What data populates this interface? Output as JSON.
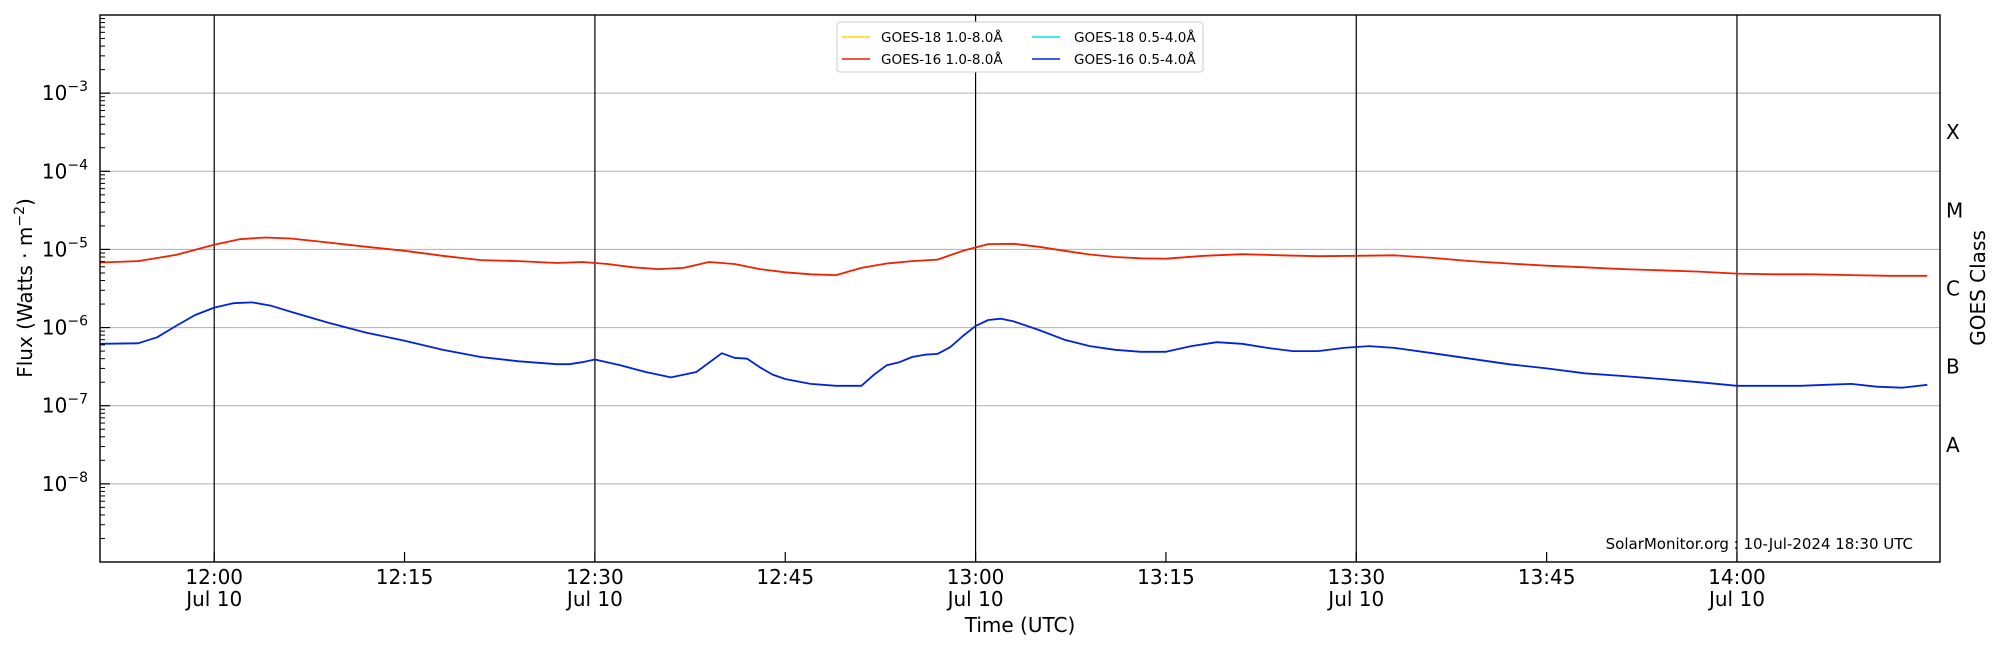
{
  "chart_data": {
    "type": "line",
    "xlabel": "Time (UTC)",
    "ylabel_main": "Flux (Watts · m",
    "ylabel_sup": "−2",
    "ylabel_close": ")",
    "right_label": "GOES Class",
    "credit": "SolarMonitor.org : 10-Jul-2024 18:30 UTC",
    "yscale": "log",
    "ylim": [
      1e-09,
      0.01
    ],
    "x_range_min": [
      -18,
      272
    ],
    "grid": "horizontal",
    "legend_position": "top-center",
    "y_ticks": [
      {
        "base": "10",
        "exp": "−8",
        "value": 1e-08
      },
      {
        "base": "10",
        "exp": "−7",
        "value": 1e-07
      },
      {
        "base": "10",
        "exp": "−6",
        "value": 1e-06
      },
      {
        "base": "10",
        "exp": "−5",
        "value": 1e-05
      },
      {
        "base": "10",
        "exp": "−4",
        "value": 0.0001
      },
      {
        "base": "10",
        "exp": "−3",
        "value": 0.001
      }
    ],
    "x_ticks": [
      {
        "time": "12:00",
        "date": "Jul 10",
        "min": 0,
        "vline": true
      },
      {
        "time": "12:15",
        "date": "",
        "min": 30,
        "vline": false
      },
      {
        "time": "12:30",
        "date": "Jul 10",
        "min": 60,
        "vline": true
      },
      {
        "time": "12:45",
        "date": "",
        "min": 90,
        "vline": false
      },
      {
        "time": "13:00",
        "date": "Jul 10",
        "min": 120,
        "vline": true
      },
      {
        "time": "13:15",
        "date": "",
        "min": 150,
        "vline": false
      },
      {
        "time": "13:30",
        "date": "Jul 10",
        "min": 180,
        "vline": true
      },
      {
        "time": "13:45",
        "date": "",
        "min": 210,
        "vline": false
      },
      {
        "time": "14:00",
        "date": "Jul 10",
        "min": 240,
        "vline": true
      }
    ],
    "goes_classes": [
      {
        "label": "A",
        "value": 3.16e-08
      },
      {
        "label": "B",
        "value": 3.16e-07
      },
      {
        "label": "C",
        "value": 3.16e-06
      },
      {
        "label": "M",
        "value": 3.16e-05
      },
      {
        "label": "X",
        "value": 0.000316
      }
    ],
    "legend": [
      {
        "label": "GOES-18 1.0-8.0Å",
        "color": "#ffd700"
      },
      {
        "label": "GOES-18 0.5-4.0Å",
        "color": "#00e5ee"
      },
      {
        "label": "GOES-16 1.0-8.0Å",
        "color": "#ee2200"
      },
      {
        "label": "GOES-16 0.5-4.0Å",
        "color": "#0022dd"
      }
    ],
    "series": [
      {
        "name": "GOES-16 1.0-8.0Å",
        "color": "#ee2200",
        "x": [
          -18,
          -12,
          -6,
          0,
          4,
          8,
          12,
          16,
          24,
          30,
          36,
          42,
          48,
          54,
          58,
          62,
          66,
          70,
          74,
          78,
          82,
          86,
          90,
          94,
          98,
          102,
          106,
          110,
          114,
          118,
          122,
          126,
          130,
          134,
          138,
          142,
          146,
          150,
          156,
          162,
          168,
          174,
          180,
          186,
          192,
          198,
          204,
          210,
          216,
          222,
          228,
          234,
          240,
          246,
          252,
          258,
          264,
          270
        ],
        "y": [
          6.8e-06,
          7.1e-06,
          8.5e-06,
          1.15e-05,
          1.35e-05,
          1.42e-05,
          1.38e-05,
          1.28e-05,
          1.08e-05,
          9.6e-06,
          8.3e-06,
          7.3e-06,
          7.1e-06,
          6.7e-06,
          6.9e-06,
          6.5e-06,
          5.9e-06,
          5.6e-06,
          5.8e-06,
          6.9e-06,
          6.5e-06,
          5.6e-06,
          5.1e-06,
          4.8e-06,
          4.7e-06,
          5.8e-06,
          6.6e-06,
          7.1e-06,
          7.4e-06,
          9.6e-06,
          1.17e-05,
          1.18e-05,
          1.08e-05,
          9.6e-06,
          8.6e-06,
          8e-06,
          7.7e-06,
          7.6e-06,
          8.3e-06,
          8.7e-06,
          8.4e-06,
          8.2e-06,
          8.3e-06,
          8.4e-06,
          7.8e-06,
          7.1e-06,
          6.6e-06,
          6.2e-06,
          5.9e-06,
          5.6e-06,
          5.4e-06,
          5.2e-06,
          4.9e-06,
          4.8e-06,
          4.8e-06,
          4.7e-06,
          4.6e-06,
          4.6e-06
        ]
      },
      {
        "name": "GOES-16 0.5-4.0Å",
        "color": "#0022dd",
        "x": [
          -18,
          -12,
          -9,
          -6,
          -3,
          0,
          3,
          6,
          9,
          12,
          18,
          24,
          30,
          36,
          42,
          48,
          54,
          56,
          58,
          60,
          64,
          68,
          72,
          76,
          80,
          82,
          84,
          86,
          88,
          90,
          94,
          98,
          102,
          104,
          106,
          108,
          110,
          112,
          114,
          116,
          118,
          120,
          122,
          124,
          126,
          130,
          134,
          138,
          142,
          146,
          150,
          154,
          158,
          162,
          166,
          170,
          174,
          178,
          182,
          186,
          192,
          198,
          204,
          210,
          216,
          222,
          228,
          234,
          240,
          246,
          250,
          254,
          258,
          262,
          266,
          270
        ],
        "y": [
          6.2e-07,
          6.3e-07,
          7.5e-07,
          1.05e-06,
          1.45e-06,
          1.8e-06,
          2.05e-06,
          2.1e-06,
          1.9e-06,
          1.6e-06,
          1.15e-06,
          8.6e-07,
          6.8e-07,
          5.2e-07,
          4.2e-07,
          3.7e-07,
          3.4e-07,
          3.4e-07,
          3.6e-07,
          3.9e-07,
          3.3e-07,
          2.7e-07,
          2.3e-07,
          2.7e-07,
          4.7e-07,
          4.1e-07,
          4e-07,
          3.1e-07,
          2.5e-07,
          2.2e-07,
          1.9e-07,
          1.8e-07,
          1.8e-07,
          2.5e-07,
          3.3e-07,
          3.6e-07,
          4.2e-07,
          4.5e-07,
          4.6e-07,
          5.6e-07,
          7.8e-07,
          1.05e-06,
          1.25e-06,
          1.3e-06,
          1.2e-06,
          9.3e-07,
          7e-07,
          5.8e-07,
          5.2e-07,
          4.9e-07,
          4.9e-07,
          5.8e-07,
          6.5e-07,
          6.2e-07,
          5.5e-07,
          5e-07,
          5e-07,
          5.5e-07,
          5.8e-07,
          5.5e-07,
          4.7e-07,
          4e-07,
          3.4e-07,
          3e-07,
          2.6e-07,
          2.4e-07,
          2.2e-07,
          2e-07,
          1.8e-07,
          1.8e-07,
          1.8e-07,
          1.85e-07,
          1.9e-07,
          1.75e-07,
          1.7e-07,
          1.85e-07
        ]
      }
    ]
  }
}
